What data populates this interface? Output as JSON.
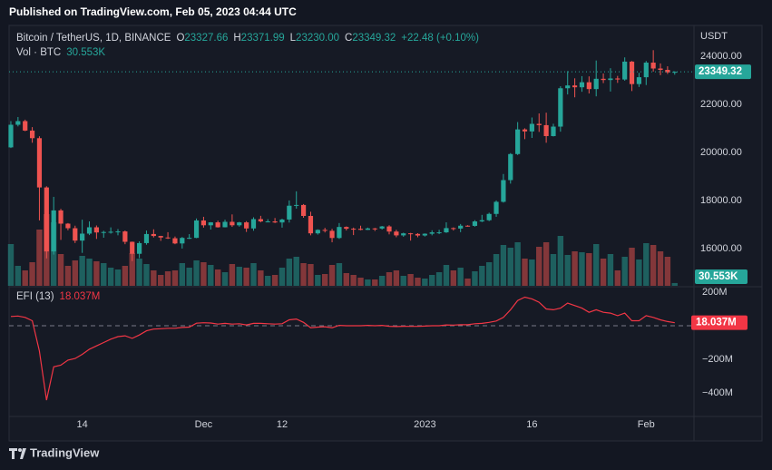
{
  "header": {
    "published": "Published on TradingView.com, Feb 05, 2023 04:44 UTC"
  },
  "footer": {
    "brand": "TradingView"
  },
  "chart_data": [
    {
      "type": "candlestick",
      "title": "Bitcoin / TetherUS, 1D, BINANCE",
      "currency": "USDT",
      "legend": {
        "o_label": "O",
        "open": "23327.66",
        "h_label": "H",
        "high": "23371.99",
        "l_label": "L",
        "low": "23230.00",
        "c_label": "C",
        "close": "23349.32",
        "change": "+22.48 (+0.10%)"
      },
      "up_color": "#26a69a",
      "down_color": "#ef5350",
      "xlim": [
        -0.25,
        95.7
      ],
      "ylim": [
        14450,
        25280
      ],
      "grid": false,
      "yticks": [
        {
          "value": 16000,
          "label": "16000.00"
        },
        {
          "value": 18000,
          "label": "18000.00"
        },
        {
          "value": 20000,
          "label": "20000.00"
        },
        {
          "value": 22000,
          "label": "22000.00"
        },
        {
          "value": 24000,
          "label": "24000.00"
        }
      ],
      "open": [
        20208,
        21148,
        21300,
        20905,
        20590,
        18541,
        15880,
        17586,
        17035,
        16845,
        16330,
        16620,
        16884,
        16669,
        16687,
        16698,
        16712,
        16280,
        15781,
        16226,
        16604,
        16522,
        16459,
        16428,
        16212,
        16442,
        16444,
        17168,
        16967,
        17089,
        16885,
        17111,
        16967,
        17088,
        16836,
        17224,
        17128,
        17128,
        17085,
        17207,
        17781,
        17812,
        17356,
        16632,
        16776,
        16738,
        16439,
        16897,
        16824,
        16821,
        16778,
        16836,
        16833,
        16919,
        16706,
        16547,
        16633,
        16607,
        16542,
        16616,
        16673,
        16674,
        16850,
        16831,
        16950,
        16942,
        17128,
        17178,
        17440,
        17943,
        18846,
        19930,
        20954,
        20871,
        21185,
        21132,
        20677,
        21071,
        22667,
        22783,
        22707,
        22916,
        22632,
        23060,
        23009,
        23074,
        23031,
        23774,
        22840,
        23125,
        23732,
        23488,
        23431,
        23327.66
      ],
      "high": [
        21300,
        21470,
        21360,
        21050,
        20670,
        18590,
        18150,
        17650,
        17060,
        16950,
        17200,
        17130,
        16960,
        16740,
        16880,
        16810,
        16750,
        16290,
        16300,
        16750,
        16800,
        16530,
        16680,
        16500,
        16480,
        16600,
        17250,
        17320,
        17100,
        17160,
        17200,
        17420,
        17110,
        17140,
        17300,
        17360,
        17220,
        17270,
        17240,
        18000,
        18380,
        17850,
        17530,
        16800,
        16860,
        16820,
        17060,
        16920,
        16870,
        16950,
        16870,
        16860,
        16940,
        16970,
        16780,
        16660,
        16650,
        16640,
        16630,
        16760,
        16780,
        17090,
        16880,
        17020,
        16970,
        17180,
        17400,
        17490,
        18000,
        19100,
        19970,
        21260,
        21000,
        21450,
        21620,
        21650,
        21190,
        22750,
        23380,
        23080,
        23170,
        23160,
        23820,
        23280,
        23500,
        23180,
        23950,
        23800,
        23310,
        23800,
        24250,
        23700,
        23580,
        23371.99
      ],
      "low": [
        20180,
        21080,
        20880,
        20400,
        17170,
        15590,
        15750,
        16360,
        16760,
        16230,
        15820,
        16560,
        16400,
        16450,
        16620,
        16550,
        16180,
        15480,
        15600,
        16160,
        16460,
        16320,
        16400,
        16180,
        16000,
        16400,
        16430,
        16870,
        16790,
        16870,
        16880,
        16900,
        16910,
        16690,
        16740,
        17090,
        17090,
        17060,
        16870,
        17080,
        17660,
        17280,
        16550,
        16580,
        16670,
        16260,
        16400,
        16750,
        16560,
        16760,
        16770,
        16730,
        16790,
        16590,
        16470,
        16490,
        16330,
        16470,
        16500,
        16550,
        16600,
        16650,
        16750,
        16680,
        16910,
        16910,
        17100,
        17140,
        17320,
        17910,
        18700,
        19890,
        20550,
        20600,
        20850,
        20400,
        20660,
        20860,
        22410,
        22290,
        22520,
        22450,
        22330,
        22880,
        22530,
        22890,
        22980,
        22550,
        22720,
        22800,
        23360,
        23210,
        23260,
        23230
      ],
      "close": [
        21148,
        21300,
        20905,
        20590,
        18541,
        15880,
        17586,
        17035,
        16845,
        16330,
        16620,
        16884,
        16669,
        16687,
        16698,
        16712,
        16280,
        15781,
        16226,
        16604,
        16522,
        16459,
        16428,
        16212,
        16442,
        16444,
        17168,
        16967,
        17089,
        16885,
        17111,
        16967,
        17088,
        16836,
        17224,
        17128,
        17128,
        17085,
        17207,
        17781,
        17812,
        17356,
        16632,
        16776,
        16738,
        16439,
        16897,
        16824,
        16821,
        16778,
        16836,
        16833,
        16919,
        16706,
        16547,
        16633,
        16607,
        16542,
        16616,
        16673,
        16674,
        16850,
        16831,
        16950,
        16942,
        17128,
        17178,
        17440,
        17943,
        18846,
        19930,
        20954,
        20871,
        21185,
        21132,
        20677,
        21071,
        22667,
        22783,
        22707,
        22916,
        22632,
        23060,
        23009,
        23074,
        23031,
        23774,
        22840,
        23125,
        23732,
        23488,
        23431,
        23326.84,
        23349.32
      ],
      "volume": {
        "name": "Vol · BTC",
        "last_value_label": "30.553K",
        "vlim": [
          0,
          1000
        ],
        "values": [
          460,
          220,
          170,
          260,
          620,
          790,
          700,
          350,
          220,
          280,
          330,
          300,
          270,
          250,
          200,
          180,
          220,
          360,
          300,
          240,
          170,
          120,
          160,
          170,
          250,
          200,
          280,
          260,
          230,
          180,
          150,
          240,
          210,
          200,
          250,
          170,
          110,
          120,
          200,
          300,
          320,
          250,
          240,
          120,
          130,
          230,
          250,
          140,
          120,
          90,
          70,
          70,
          110,
          150,
          170,
          110,
          130,
          90,
          80,
          120,
          150,
          230,
          170,
          200,
          80,
          160,
          220,
          260,
          350,
          450,
          420,
          480,
          300,
          290,
          430,
          480,
          350,
          550,
          340,
          380,
          370,
          360,
          460,
          300,
          350,
          170,
          320,
          420,
          290,
          470,
          450,
          380,
          320,
          30.553
        ]
      }
    },
    {
      "type": "line",
      "title": "EFI (13)",
      "color": "#f23645",
      "last_value_label": "18.037M",
      "xlim": [
        -0.25,
        95.7
      ],
      "ylim": [
        -535,
        227
      ],
      "zero_line": true,
      "yticks": [
        {
          "value": 200,
          "label": "200M"
        },
        {
          "value": -200,
          "label": "−200M"
        },
        {
          "value": -400,
          "label": "−400M"
        }
      ],
      "xticks": [
        {
          "value": 10,
          "label": "14"
        },
        {
          "value": 27,
          "label": "Dec"
        },
        {
          "value": 38,
          "label": "12"
        },
        {
          "value": 58,
          "label": "2023"
        },
        {
          "value": 73,
          "label": "16"
        },
        {
          "value": 89,
          "label": "Feb"
        }
      ],
      "values": [
        55,
        58,
        50,
        30,
        -150,
        -443,
        -245,
        -235,
        -205,
        -195,
        -170,
        -140,
        -120,
        -100,
        -80,
        -65,
        -60,
        -75,
        -55,
        -30,
        -20,
        -18,
        -15,
        -15,
        -10,
        -8,
        15,
        18,
        16,
        10,
        14,
        10,
        12,
        5,
        14,
        14,
        12,
        10,
        12,
        35,
        40,
        20,
        -12,
        -8,
        -6,
        -12,
        2,
        0,
        0,
        0,
        2,
        0,
        2,
        -3,
        -5,
        -3,
        -4,
        -4,
        -2,
        0,
        0,
        5,
        4,
        6,
        6,
        12,
        14,
        20,
        28,
        50,
        95,
        150,
        170,
        160,
        140,
        100,
        95,
        105,
        135,
        120,
        105,
        80,
        95,
        80,
        75,
        60,
        75,
        30,
        30,
        60,
        50,
        35,
        25,
        18.037
      ]
    }
  ]
}
